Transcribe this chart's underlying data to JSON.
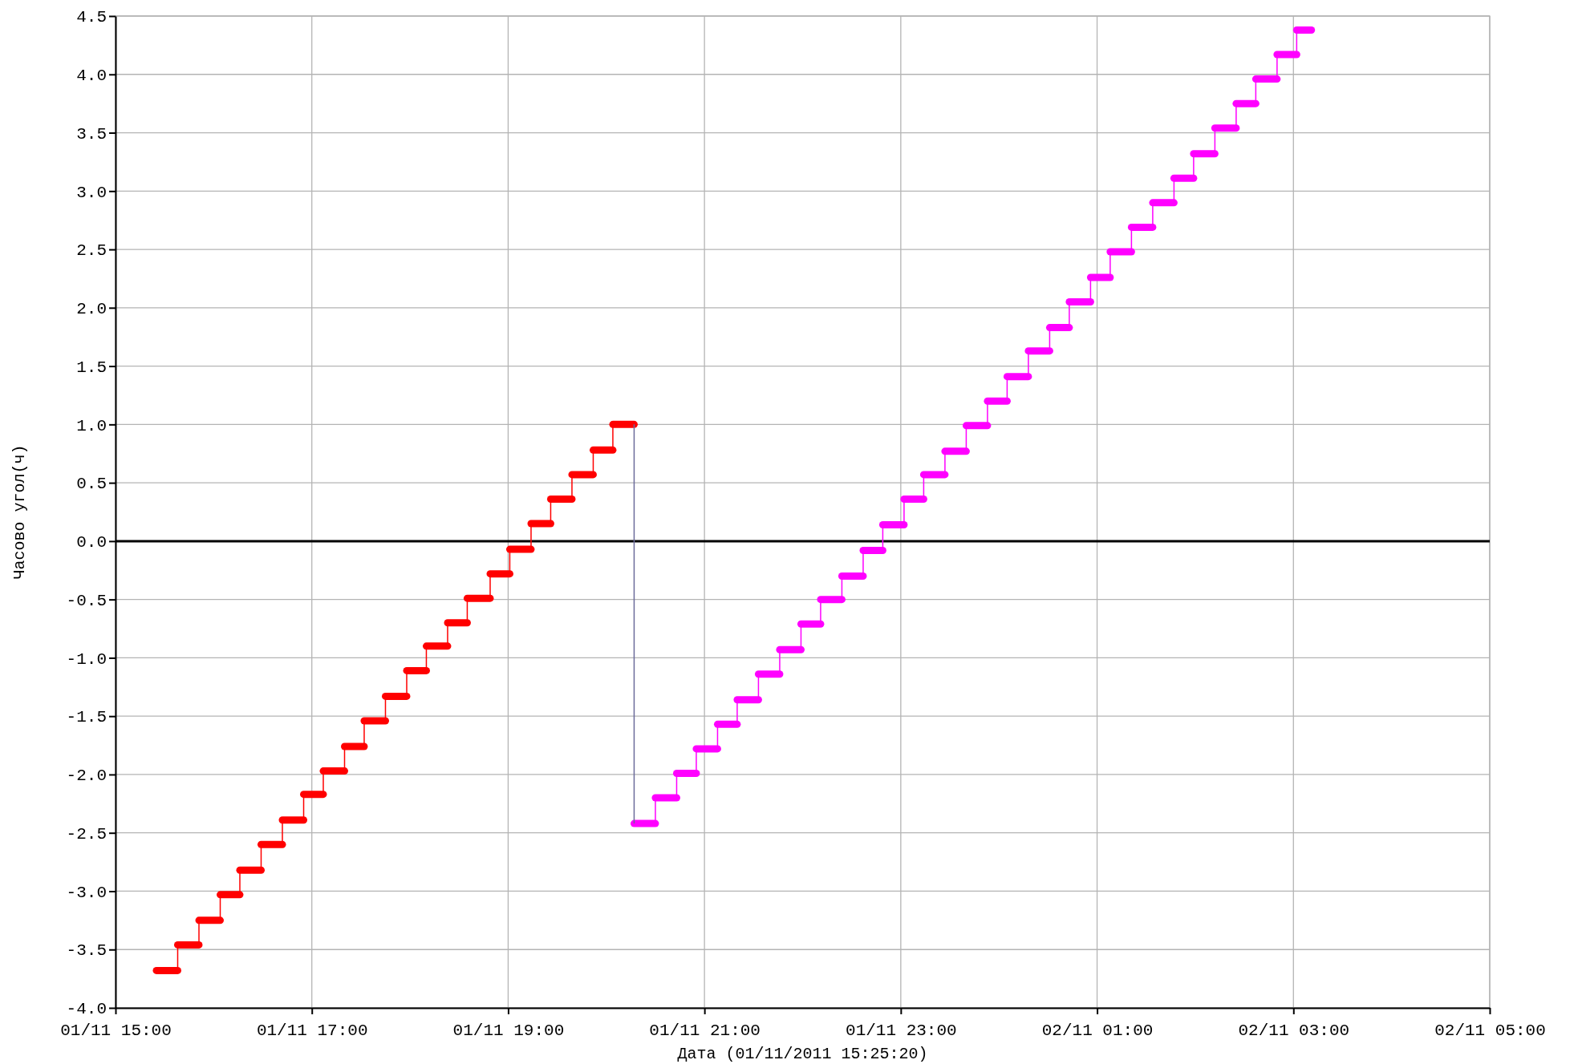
{
  "chart_data": {
    "type": "step",
    "xlabel": "Дата (01/11/2011 15:25:20)",
    "ylabel": "Часово угол(ч)",
    "xlim": [
      "2011-11-01T15:00",
      "2011-11-02T05:00"
    ],
    "xticks": [
      {
        "value": "2011-11-01T15:00",
        "label": "01/11 15:00"
      },
      {
        "value": "2011-11-01T17:00",
        "label": "01/11 17:00"
      },
      {
        "value": "2011-11-01T19:00",
        "label": "01/11 19:00"
      },
      {
        "value": "2011-11-01T21:00",
        "label": "01/11 21:00"
      },
      {
        "value": "2011-11-01T23:00",
        "label": "01/11 23:00"
      },
      {
        "value": "2011-11-02T01:00",
        "label": "02/11 01:00"
      },
      {
        "value": "2011-11-02T03:00",
        "label": "02/11 03:00"
      },
      {
        "value": "2011-11-02T05:00",
        "label": "02/11 05:00"
      }
    ],
    "ylim": [
      -4,
      4.5
    ],
    "yticks": [
      {
        "value": -4,
        "label": "-4.0"
      },
      {
        "value": -3.5,
        "label": "-3.5"
      },
      {
        "value": -3,
        "label": "-3.0"
      },
      {
        "value": -2.5,
        "label": "-2.5"
      },
      {
        "value": -2,
        "label": "-2.0"
      },
      {
        "value": -1.5,
        "label": "-1.5"
      },
      {
        "value": -1,
        "label": "-1.0"
      },
      {
        "value": -0.5,
        "label": "-0.5"
      },
      {
        "value": 0,
        "label": "0.0"
      },
      {
        "value": 0.5,
        "label": "0.5"
      },
      {
        "value": 1,
        "label": "1.0"
      },
      {
        "value": 1.5,
        "label": "1.5"
      },
      {
        "value": 2,
        "label": "2.0"
      },
      {
        "value": 2.5,
        "label": "2.5"
      },
      {
        "value": 3,
        "label": "3.0"
      },
      {
        "value": 3.5,
        "label": "3.5"
      },
      {
        "value": 4,
        "label": "4.0"
      },
      {
        "value": 4.5,
        "label": "4.5"
      }
    ],
    "grid": true,
    "ref_lines": [
      {
        "axis": "y",
        "value": 0,
        "color": "#000000"
      }
    ],
    "series": [
      {
        "color": "#ff0000",
        "x": [
          "2011-11-01T15:25",
          "2011-11-01T15:38",
          "2011-11-01T15:51",
          "2011-11-01T16:04",
          "2011-11-01T16:16",
          "2011-11-01T16:29",
          "2011-11-01T16:42",
          "2011-11-01T16:55",
          "2011-11-01T17:07",
          "2011-11-01T17:20",
          "2011-11-01T17:32",
          "2011-11-01T17:45",
          "2011-11-01T17:58",
          "2011-11-01T18:10",
          "2011-11-01T18:23",
          "2011-11-01T18:35",
          "2011-11-01T18:49",
          "2011-11-01T19:01",
          "2011-11-01T19:14",
          "2011-11-01T19:26",
          "2011-11-01T19:39",
          "2011-11-01T19:52",
          "2011-11-01T20:04",
          "2011-11-01T20:17"
        ],
        "values": [
          -3.68,
          -3.46,
          -3.25,
          -3.03,
          -2.82,
          -2.6,
          -2.39,
          -2.17,
          -1.97,
          -1.76,
          -1.54,
          -1.33,
          -1.11,
          -0.9,
          -0.7,
          -0.49,
          -0.28,
          -0.07,
          0.15,
          0.36,
          0.57,
          0.78,
          1.0,
          1.0
        ]
      },
      {
        "color": "#ff00ff",
        "x": [
          "2011-11-01T20:17",
          "2011-11-01T20:30",
          "2011-11-01T20:43",
          "2011-11-01T20:55",
          "2011-11-01T21:08",
          "2011-11-01T21:20",
          "2011-11-01T21:33",
          "2011-11-01T21:46",
          "2011-11-01T21:59",
          "2011-11-01T22:11",
          "2011-11-01T22:24",
          "2011-11-01T22:37",
          "2011-11-01T22:49",
          "2011-11-01T23:02",
          "2011-11-01T23:14",
          "2011-11-01T23:27",
          "2011-11-01T23:40",
          "2011-11-01T23:53",
          "2011-11-02T00:05",
          "2011-11-02T00:18",
          "2011-11-02T00:31",
          "2011-11-02T00:43",
          "2011-11-02T00:56",
          "2011-11-02T01:08",
          "2011-11-02T01:21",
          "2011-11-02T01:34",
          "2011-11-02T01:47",
          "2011-11-02T01:59",
          "2011-11-02T02:12",
          "2011-11-02T02:25",
          "2011-11-02T02:37",
          "2011-11-02T02:50",
          "2011-11-02T03:02",
          "2011-11-02T03:11"
        ],
        "values": [
          -2.42,
          -2.2,
          -1.99,
          -1.78,
          -1.57,
          -1.36,
          -1.14,
          -0.93,
          -0.71,
          -0.5,
          -0.3,
          -0.08,
          0.14,
          0.36,
          0.57,
          0.77,
          0.99,
          1.2,
          1.41,
          1.63,
          1.83,
          2.05,
          2.26,
          2.48,
          2.69,
          2.9,
          3.11,
          3.32,
          3.54,
          3.75,
          3.96,
          4.17,
          4.38,
          4.38
        ]
      },
      {
        "type": "line",
        "color": "#6b6b9b",
        "x": [
          "2011-11-01T20:17",
          "2011-11-01T20:17"
        ],
        "values": [
          1.0,
          -2.42
        ]
      }
    ]
  }
}
